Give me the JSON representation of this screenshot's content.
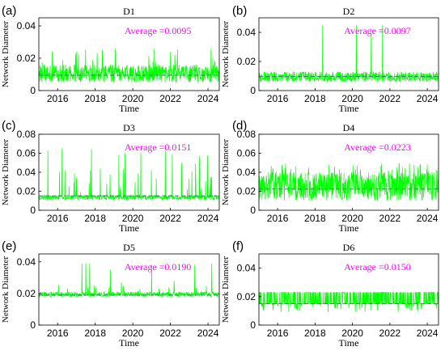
{
  "chart_data": [
    {
      "panel": "(a)",
      "title": "D1",
      "type": "line",
      "xlabel": "Time",
      "ylabel": "Network Diameter",
      "xlim": [
        2015,
        2024.6
      ],
      "ylim": [
        0,
        0.045
      ],
      "xticks": [
        "2016",
        "2018",
        "2020",
        "2022",
        "2024"
      ],
      "yticks": [
        "0",
        "0.02",
        "0.04"
      ],
      "annotation": "Average =0.0095",
      "series_color": "#00ff00",
      "mean_line_color": "#2e8b57",
      "mean": 0.0095,
      "noise": {
        "low": 0.005,
        "high": 0.016,
        "spike_max": 0.026,
        "spike_prob": 0.03
      },
      "spikes": []
    },
    {
      "panel": "(b)",
      "title": "D2",
      "type": "line",
      "xlabel": "Time",
      "ylabel": "Network Diameter",
      "xlim": [
        2015,
        2024.6
      ],
      "ylim": [
        0,
        0.05
      ],
      "xticks": [
        "2016",
        "2018",
        "2020",
        "2022",
        "2024"
      ],
      "yticks": [
        "0",
        "0.02",
        "0.04"
      ],
      "annotation": "Average =0.0097",
      "series_color": "#00ff00",
      "mean_line_color": "#2e8b57",
      "mean": 0.0097,
      "noise": {
        "low": 0.006,
        "high": 0.013,
        "spike_max": 0.015,
        "spike_prob": 0.0
      },
      "spikes": [
        [
          2018.4,
          0.045
        ],
        [
          2020.2,
          0.045
        ],
        [
          2021.0,
          0.04
        ],
        [
          2021.6,
          0.045
        ]
      ]
    },
    {
      "panel": "(c)",
      "title": "D3",
      "type": "line",
      "xlabel": "Time",
      "ylabel": "Network Diameter",
      "xlim": [
        2015,
        2024.6
      ],
      "ylim": [
        0,
        0.08
      ],
      "xticks": [
        "2016",
        "2018",
        "2020",
        "2022",
        "2024"
      ],
      "yticks": [
        "0",
        "0.02",
        "0.04",
        "0.06",
        "0.08"
      ],
      "annotation": "Average =0.0151",
      "series_color": "#00ff00",
      "mean_line_color": "#2e8b57",
      "mean": 0.0151,
      "noise": {
        "low": 0.011,
        "high": 0.016,
        "spike_max": 0.065,
        "spike_prob": 0.06
      },
      "spikes": []
    },
    {
      "panel": "(d)",
      "title": "D4",
      "type": "line",
      "xlabel": "Time",
      "ylabel": "Network Diameter",
      "xlim": [
        2015,
        2024.6
      ],
      "ylim": [
        0,
        0.08
      ],
      "xticks": [
        "2016",
        "2018",
        "2020",
        "2022",
        "2024"
      ],
      "yticks": [
        "0",
        "0.02",
        "0.04",
        "0.06",
        "0.08"
      ],
      "annotation": "Average =0.0223",
      "series_color": "#00ff00",
      "mean_line_color": "#2e8b57",
      "mean": 0.0223,
      "noise": {
        "low": 0.01,
        "high": 0.04,
        "spike_max": 0.05,
        "spike_prob": 0.05
      },
      "spikes": []
    },
    {
      "panel": "(e)",
      "title": "D5",
      "type": "line",
      "xlabel": "Time",
      "ylabel": "Network Diameter",
      "xlim": [
        2015,
        2024.6
      ],
      "ylim": [
        0,
        0.045
      ],
      "xticks": [
        "2016",
        "2018",
        "2020",
        "2022",
        "2024"
      ],
      "yticks": [
        "0",
        "0.02",
        "0.04"
      ],
      "annotation": "Average =0.0190",
      "series_color": "#00ff00",
      "mean_line_color": "#2e8b57",
      "mean": 0.019,
      "noise": {
        "low": 0.018,
        "high": 0.021,
        "spike_max": 0.026,
        "spike_prob": 0.025
      },
      "spikes": [
        [
          2017.3,
          0.039
        ],
        [
          2017.5,
          0.039
        ],
        [
          2017.7,
          0.039
        ],
        [
          2018.8,
          0.035
        ],
        [
          2019.4,
          0.027
        ],
        [
          2021.0,
          0.038
        ],
        [
          2022.2,
          0.028
        ],
        [
          2023.3,
          0.038
        ],
        [
          2024.2,
          0.039
        ]
      ]
    },
    {
      "panel": "(f)",
      "title": "D6",
      "type": "line",
      "xlabel": "Time",
      "ylabel": "Network Diameter",
      "xlim": [
        2015,
        2024.6
      ],
      "ylim": [
        0,
        0.05
      ],
      "xticks": [
        "2016",
        "2018",
        "2020",
        "2022",
        "2024"
      ],
      "yticks": [
        "0",
        "0.02",
        "0.04"
      ],
      "annotation": "Average =0.0150",
      "series_color": "#00ff00",
      "mean_line_color": "#2e8b57",
      "mean": 0.015,
      "levels": [
        0.015,
        0.023
      ],
      "noise": {
        "low": 0.009,
        "high": 0.023,
        "spike_max": 0.023,
        "spike_prob": 0.0
      },
      "spikes": []
    }
  ]
}
